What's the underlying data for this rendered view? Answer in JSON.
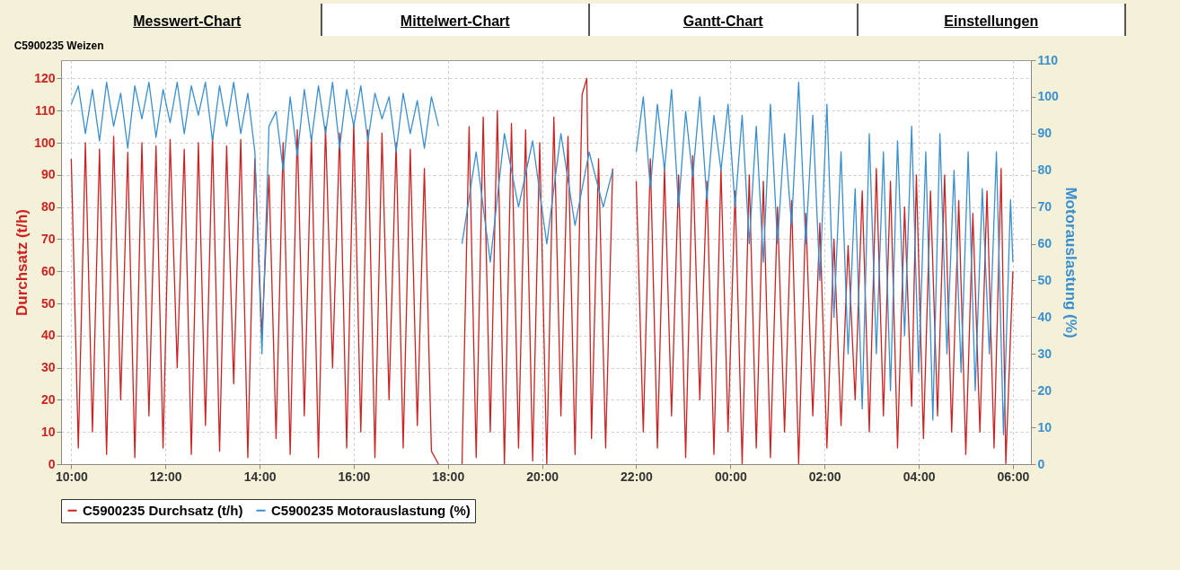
{
  "chart_data": {
    "type": "line",
    "title": "C5900235 Weizen",
    "ylabel": "Durchsatz (t/h)",
    "y2label": "Motorauslastung (%)",
    "annotations": [
      "Messwert-Chart",
      "Mittelwert-Chart",
      "Gantt-Chart",
      "Einstellungen"
    ],
    "xlim": [
      "2000-01-01T09:47",
      "2000-01-02T06:23"
    ],
    "xticks": [
      {
        "value": "2000-01-01T10:00",
        "label": "10:00"
      },
      {
        "value": "2000-01-01T12:00",
        "label": "12:00"
      },
      {
        "value": "2000-01-01T14:00",
        "label": "14:00"
      },
      {
        "value": "2000-01-01T16:00",
        "label": "16:00"
      },
      {
        "value": "2000-01-01T18:00",
        "label": "18:00"
      },
      {
        "value": "2000-01-01T20:00",
        "label": "20:00"
      },
      {
        "value": "2000-01-01T22:00",
        "label": "22:00"
      },
      {
        "value": "2000-01-02T00:00",
        "label": "00:00"
      },
      {
        "value": "2000-01-02T02:00",
        "label": "02:00"
      },
      {
        "value": "2000-01-02T04:00",
        "label": "04:00"
      },
      {
        "value": "2000-01-02T06:00",
        "label": "06:00"
      }
    ],
    "ylim": [
      0,
      125.7
    ],
    "yticks": [
      0,
      10,
      20,
      30,
      40,
      50,
      60,
      70,
      80,
      90,
      100,
      110,
      120
    ],
    "y2lim": [
      0,
      110
    ],
    "y2ticks": [
      0,
      10,
      20,
      30,
      40,
      50,
      60,
      70,
      80,
      90,
      100,
      110
    ],
    "grid": true,
    "legend": "bottom",
    "series": [
      {
        "name": "C5900235 Durchsatz (t/h)",
        "color": "#cc2222",
        "x": [
          "2000-01-01T10:00",
          "2000-01-01T10:09",
          "2000-01-01T10:18",
          "2000-01-01T10:27",
          "2000-01-01T10:36",
          "2000-01-01T10:45",
          "2000-01-01T10:54",
          "2000-01-01T11:03",
          "2000-01-01T11:12",
          "2000-01-01T11:21",
          "2000-01-01T11:30",
          "2000-01-01T11:39",
          "2000-01-01T11:48",
          "2000-01-01T11:57",
          "2000-01-01T12:06",
          "2000-01-01T12:15",
          "2000-01-01T12:24",
          "2000-01-01T12:33",
          "2000-01-01T12:42",
          "2000-01-01T12:51",
          "2000-01-01T13:00",
          "2000-01-01T13:09",
          "2000-01-01T13:18",
          "2000-01-01T13:27",
          "2000-01-01T13:36",
          "2000-01-01T13:45",
          "2000-01-01T13:54",
          "2000-01-01T14:03",
          "2000-01-01T14:12",
          "2000-01-01T14:21",
          "2000-01-01T14:30",
          "2000-01-01T14:39",
          "2000-01-01T14:48",
          "2000-01-01T14:57",
          "2000-01-01T15:06",
          "2000-01-01T15:15",
          "2000-01-01T15:24",
          "2000-01-01T15:33",
          "2000-01-01T15:42",
          "2000-01-01T15:51",
          "2000-01-01T16:00",
          "2000-01-01T16:09",
          "2000-01-01T16:18",
          "2000-01-01T16:27",
          "2000-01-01T16:36",
          "2000-01-01T16:45",
          "2000-01-01T16:54",
          "2000-01-01T17:03",
          "2000-01-01T17:12",
          "2000-01-01T17:21",
          "2000-01-01T17:30",
          "2000-01-01T17:39",
          "2000-01-01T17:48",
          "2000-01-01T18:03",
          "2000-01-01T18:18",
          "2000-01-01T18:27",
          "2000-01-01T18:36",
          "2000-01-01T18:45",
          "2000-01-01T18:54",
          "2000-01-01T19:03",
          "2000-01-01T19:12",
          "2000-01-01T19:21",
          "2000-01-01T19:30",
          "2000-01-01T19:39",
          "2000-01-01T19:48",
          "2000-01-01T19:57",
          "2000-01-01T20:06",
          "2000-01-01T20:15",
          "2000-01-01T20:24",
          "2000-01-01T20:33",
          "2000-01-01T20:42",
          "2000-01-01T20:51",
          "2000-01-01T20:57",
          "2000-01-01T21:03",
          "2000-01-01T21:12",
          "2000-01-01T21:21",
          "2000-01-01T21:30",
          "2000-01-01T21:45",
          "2000-01-01T22:00",
          "2000-01-01T22:09",
          "2000-01-01T22:18",
          "2000-01-01T22:27",
          "2000-01-01T22:36",
          "2000-01-01T22:45",
          "2000-01-01T22:54",
          "2000-01-01T23:03",
          "2000-01-01T23:12",
          "2000-01-01T23:21",
          "2000-01-01T23:30",
          "2000-01-01T23:39",
          "2000-01-01T23:48",
          "2000-01-01T23:57",
          "2000-01-02T00:06",
          "2000-01-02T00:15",
          "2000-01-02T00:24",
          "2000-01-02T00:33",
          "2000-01-02T00:42",
          "2000-01-02T00:51",
          "2000-01-02T01:00",
          "2000-01-02T01:09",
          "2000-01-02T01:18",
          "2000-01-02T01:27",
          "2000-01-02T01:36",
          "2000-01-02T01:45",
          "2000-01-02T01:54",
          "2000-01-02T02:03",
          "2000-01-02T02:12",
          "2000-01-02T02:21",
          "2000-01-02T02:30",
          "2000-01-02T02:39",
          "2000-01-02T02:48",
          "2000-01-02T02:57",
          "2000-01-02T03:06",
          "2000-01-02T03:15",
          "2000-01-02T03:24",
          "2000-01-02T03:33",
          "2000-01-02T03:42",
          "2000-01-02T03:51",
          "2000-01-02T03:57",
          "2000-01-02T04:06",
          "2000-01-02T04:15",
          "2000-01-02T04:24",
          "2000-01-02T04:33",
          "2000-01-02T04:42",
          "2000-01-02T04:51",
          "2000-01-02T05:00",
          "2000-01-02T05:09",
          "2000-01-02T05:18",
          "2000-01-02T05:27",
          "2000-01-02T05:36",
          "2000-01-02T05:45",
          "2000-01-02T05:51",
          "2000-01-02T06:00"
        ],
        "values": [
          95,
          5,
          100,
          10,
          98,
          3,
          102,
          20,
          97,
          2,
          100,
          15,
          99,
          5,
          101,
          30,
          98,
          3,
          100,
          12,
          102,
          4,
          99,
          25,
          101,
          2,
          95,
          40,
          90,
          8,
          100,
          3,
          104,
          15,
          102,
          2,
          105,
          30,
          103,
          5,
          106,
          10,
          104,
          2,
          103,
          20,
          100,
          5,
          98,
          12,
          92,
          4,
          0,
          null,
          0,
          105,
          2,
          108,
          10,
          110,
          0,
          106,
          5,
          104,
          1,
          100,
          0,
          108,
          15,
          102,
          3,
          115,
          120,
          8,
          95,
          5,
          92,
          null,
          88,
          10,
          95,
          5,
          92,
          15,
          90,
          2,
          96,
          20,
          88,
          3,
          92,
          10,
          85,
          0,
          90,
          5,
          88,
          2,
          80,
          10,
          82,
          0,
          78,
          15,
          75,
          5,
          70,
          12,
          68,
          20,
          85,
          10,
          92,
          15,
          88,
          5,
          80,
          18,
          90,
          8,
          85,
          15,
          90,
          10,
          82,
          3,
          78,
          10,
          85,
          5,
          92,
          0,
          60
        ]
      },
      {
        "name": "C5900235 Motorauslastung (%)",
        "color": "#3a8fd0",
        "axis": "y2",
        "x": [
          "2000-01-01T10:00",
          "2000-01-01T10:09",
          "2000-01-01T10:18",
          "2000-01-01T10:27",
          "2000-01-01T10:36",
          "2000-01-01T10:45",
          "2000-01-01T10:54",
          "2000-01-01T11:03",
          "2000-01-01T11:12",
          "2000-01-01T11:21",
          "2000-01-01T11:30",
          "2000-01-01T11:39",
          "2000-01-01T11:48",
          "2000-01-01T11:57",
          "2000-01-01T12:06",
          "2000-01-01T12:15",
          "2000-01-01T12:24",
          "2000-01-01T12:33",
          "2000-01-01T12:42",
          "2000-01-01T12:51",
          "2000-01-01T13:00",
          "2000-01-01T13:09",
          "2000-01-01T13:18",
          "2000-01-01T13:27",
          "2000-01-01T13:36",
          "2000-01-01T13:45",
          "2000-01-01T13:54",
          "2000-01-01T14:03",
          "2000-01-01T14:12",
          "2000-01-01T14:21",
          "2000-01-01T14:30",
          "2000-01-01T14:39",
          "2000-01-01T14:48",
          "2000-01-01T14:57",
          "2000-01-01T15:06",
          "2000-01-01T15:15",
          "2000-01-01T15:24",
          "2000-01-01T15:33",
          "2000-01-01T15:42",
          "2000-01-01T15:51",
          "2000-01-01T16:00",
          "2000-01-01T16:09",
          "2000-01-01T16:18",
          "2000-01-01T16:27",
          "2000-01-01T16:36",
          "2000-01-01T16:45",
          "2000-01-01T16:54",
          "2000-01-01T17:03",
          "2000-01-01T17:12",
          "2000-01-01T17:21",
          "2000-01-01T17:30",
          "2000-01-01T17:39",
          "2000-01-01T17:48",
          "2000-01-01T18:03",
          "2000-01-01T18:18",
          "2000-01-01T18:36",
          "2000-01-01T18:54",
          "2000-01-01T19:12",
          "2000-01-01T19:30",
          "2000-01-01T19:48",
          "2000-01-01T20:06",
          "2000-01-01T20:24",
          "2000-01-01T20:42",
          "2000-01-01T21:00",
          "2000-01-01T21:18",
          "2000-01-01T21:30",
          "2000-01-01T21:45",
          "2000-01-01T22:00",
          "2000-01-01T22:09",
          "2000-01-01T22:18",
          "2000-01-01T22:27",
          "2000-01-01T22:36",
          "2000-01-01T22:45",
          "2000-01-01T22:54",
          "2000-01-01T23:03",
          "2000-01-01T23:12",
          "2000-01-01T23:21",
          "2000-01-01T23:30",
          "2000-01-01T23:39",
          "2000-01-01T23:48",
          "2000-01-01T23:57",
          "2000-01-02T00:06",
          "2000-01-02T00:15",
          "2000-01-02T00:24",
          "2000-01-02T00:33",
          "2000-01-02T00:42",
          "2000-01-02T00:51",
          "2000-01-02T01:00",
          "2000-01-02T01:09",
          "2000-01-02T01:18",
          "2000-01-02T01:27",
          "2000-01-02T01:36",
          "2000-01-02T01:45",
          "2000-01-02T01:54",
          "2000-01-02T02:03",
          "2000-01-02T02:12",
          "2000-01-02T02:21",
          "2000-01-02T02:30",
          "2000-01-02T02:39",
          "2000-01-02T02:48",
          "2000-01-02T02:57",
          "2000-01-02T03:06",
          "2000-01-02T03:15",
          "2000-01-02T03:24",
          "2000-01-02T03:33",
          "2000-01-02T03:42",
          "2000-01-02T03:51",
          "2000-01-02T04:00",
          "2000-01-02T04:09",
          "2000-01-02T04:18",
          "2000-01-02T04:27",
          "2000-01-02T04:36",
          "2000-01-02T04:45",
          "2000-01-02T04:54",
          "2000-01-02T05:03",
          "2000-01-02T05:12",
          "2000-01-02T05:21",
          "2000-01-02T05:30",
          "2000-01-02T05:39",
          "2000-01-02T05:48",
          "2000-01-02T05:57",
          "2000-01-02T06:00"
        ],
        "values": [
          98,
          103,
          90,
          102,
          88,
          104,
          92,
          101,
          86,
          103,
          94,
          104,
          89,
          102,
          93,
          104,
          90,
          103,
          95,
          104,
          88,
          103,
          92,
          104,
          90,
          101,
          85,
          30,
          92,
          96,
          80,
          100,
          84,
          102,
          88,
          103,
          90,
          104,
          86,
          102,
          92,
          103,
          88,
          101,
          94,
          100,
          85,
          101,
          90,
          99,
          86,
          100,
          92,
          null,
          60,
          85,
          55,
          90,
          70,
          88,
          60,
          90,
          65,
          85,
          70,
          80,
          null,
          85,
          100,
          75,
          98,
          80,
          102,
          70,
          96,
          78,
          100,
          72,
          95,
          80,
          98,
          70,
          95,
          60,
          92,
          55,
          98,
          60,
          90,
          65,
          104,
          60,
          95,
          50,
          98,
          40,
          85,
          30,
          75,
          15,
          90,
          30,
          85,
          20,
          88,
          35,
          92,
          25,
          85,
          12,
          90,
          30,
          80,
          25,
          85,
          20,
          75,
          30,
          85,
          8,
          72,
          55
        ]
      }
    ]
  }
}
